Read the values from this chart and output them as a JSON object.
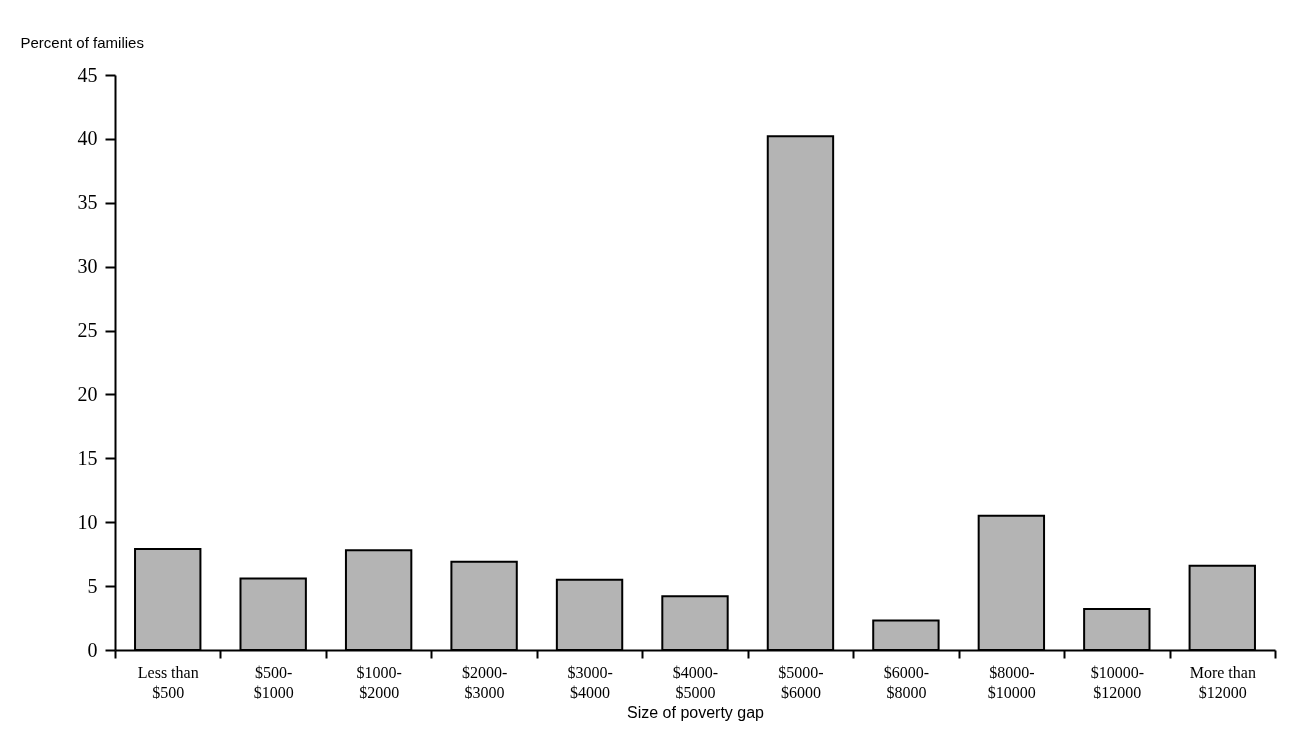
{
  "chart_data": {
    "type": "bar",
    "ylabel": "Percent of families",
    "xlabel": "Size of poverty gap",
    "categories": [
      "Less than $500",
      "$500-$1000",
      "$1000-$2000",
      "$2000-$3000",
      "$3000-$4000",
      "$4000-$5000",
      "$5000-$6000",
      "$6000-$8000",
      "$8000-$10000",
      "$10000-$12000",
      "More than $12000"
    ],
    "values": [
      7.9,
      5.6,
      7.8,
      6.9,
      5.5,
      4.2,
      40.2,
      2.3,
      10.5,
      3.2,
      6.6
    ],
    "color": "#b4b4b4",
    "ylim": [
      0,
      45
    ],
    "yticks": [
      0,
      5,
      10,
      15,
      20,
      25,
      30,
      35,
      40,
      45
    ],
    "grid": false
  }
}
